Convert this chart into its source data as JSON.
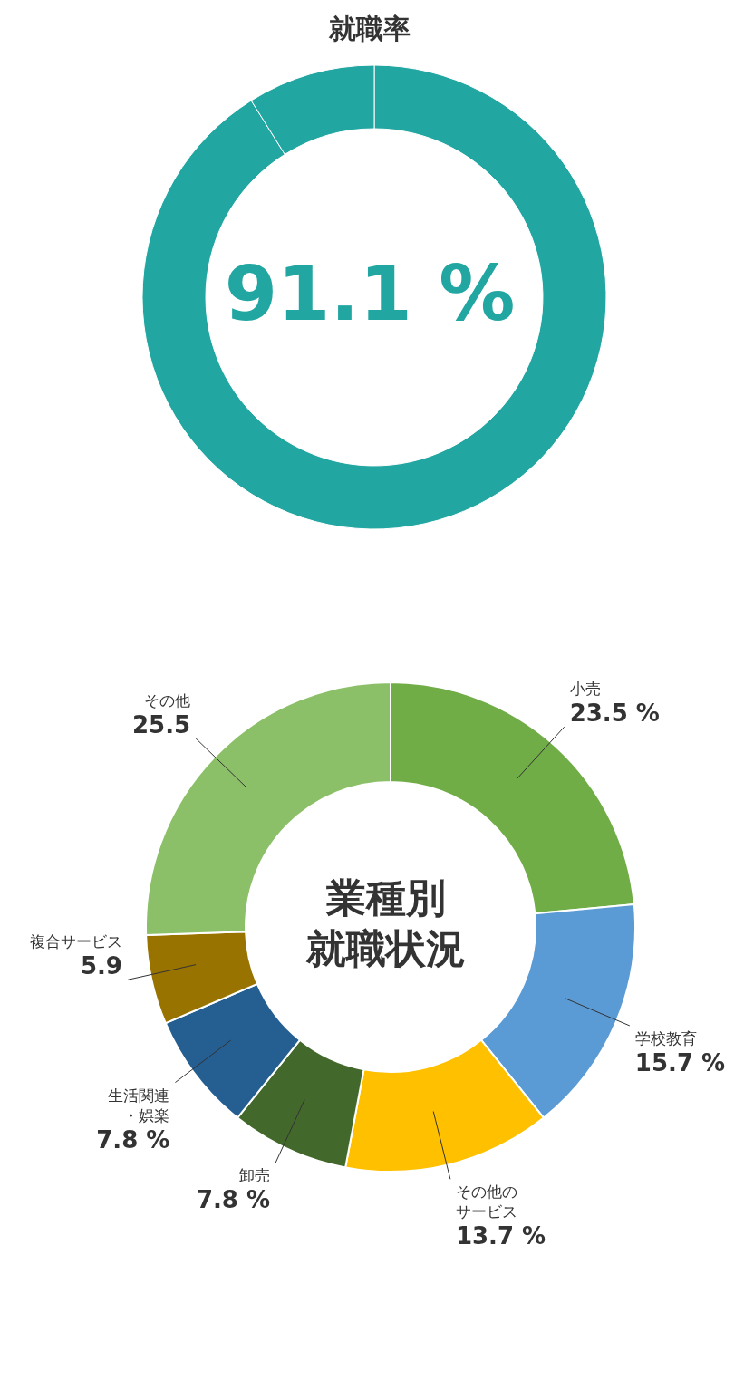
{
  "chart_data": [
    {
      "type": "donut",
      "title": "就職率",
      "categories": [
        null,
        null
      ],
      "values": [
        91.1,
        8.9
      ],
      "colors": [
        "#21a6a2",
        "#21a6a2"
      ],
      "annotations": [
        "91.1 %"
      ]
    },
    {
      "type": "donut",
      "title": "業種別就職状況",
      "categories": [
        "小売",
        "学校教育",
        "その他のサービス",
        "卸売",
        "生活関連・娯楽",
        "複合サービス",
        "その他"
      ],
      "values": [
        23.5,
        15.7,
        13.7,
        7.8,
        7.8,
        5.9,
        25.5
      ],
      "colors": [
        "#70ad47",
        "#5b9bd5",
        "#ffc000",
        "#43682b",
        "#255e91",
        "#997300",
        "#8cc068"
      ],
      "value_labels": [
        "23.5 %",
        "15.7 %",
        "13.7 %",
        "7.8 %",
        "7.8 %",
        "5.9",
        "25.5"
      ]
    }
  ]
}
